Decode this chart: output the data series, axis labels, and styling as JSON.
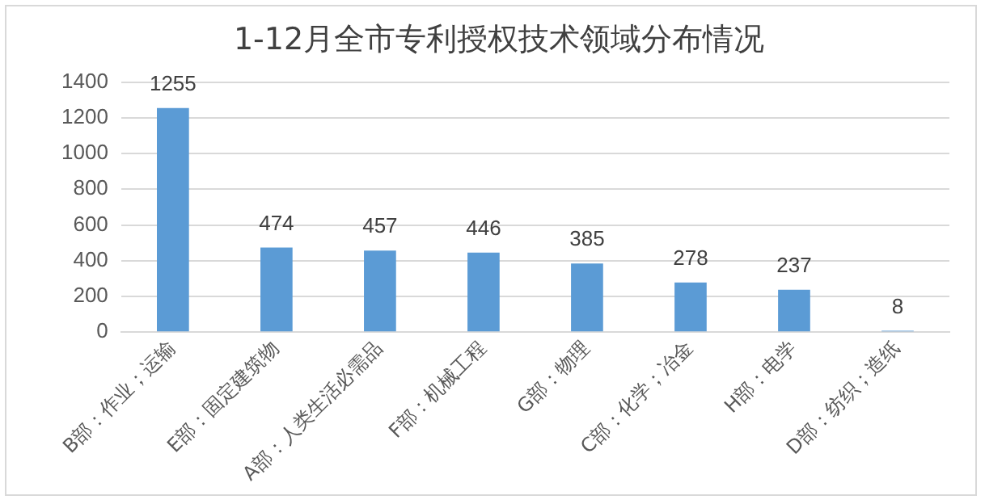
{
  "chart_data": {
    "type": "bar",
    "title": "1-12月全市专利授权技术领域分布情况",
    "categories": [
      "B部：作业；运输",
      "E部：固定建筑物",
      "A部：人类生活必需品",
      "F部：机械工程",
      "G部：物理",
      "C部：化学；冶金",
      "H部：电学",
      "D部：纺织；造纸"
    ],
    "values": [
      1255,
      474,
      457,
      446,
      385,
      278,
      237,
      8
    ],
    "color": "#5b9bd5",
    "ylim": [
      0,
      1400
    ],
    "yticks": [
      0,
      200,
      400,
      600,
      800,
      1000,
      1200,
      1400
    ],
    "grid": "y",
    "data_labels": true
  }
}
